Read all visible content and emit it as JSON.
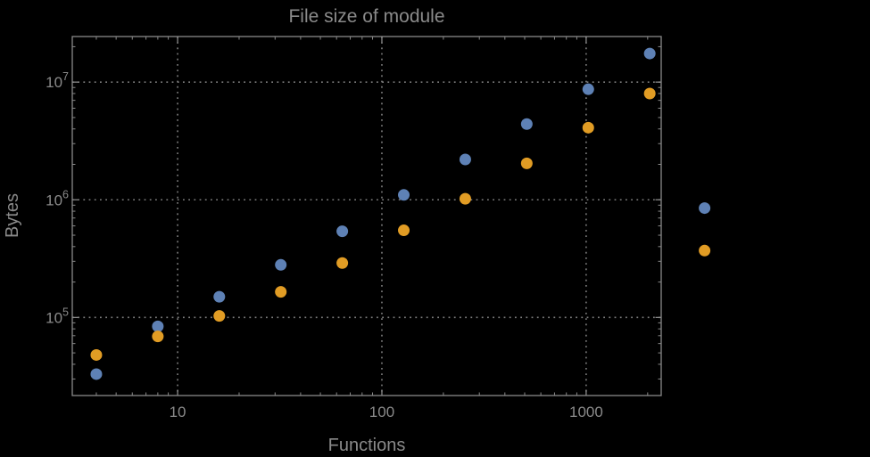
{
  "chart_data": {
    "type": "scatter",
    "title": "File size of module",
    "xlabel": "Functions",
    "ylabel": "Bytes",
    "x_scale": "log",
    "y_scale": "log",
    "xlim": [
      3.05,
      2330
    ],
    "ylim": [
      21700,
      24400000
    ],
    "grid": "dotted",
    "legend_position": "none",
    "x_ticks": [
      {
        "value": 10,
        "label": "10"
      },
      {
        "value": 100,
        "label": "100"
      },
      {
        "value": 1000,
        "label": "1000"
      }
    ],
    "y_ticks": [
      {
        "value": 100000,
        "base": "10",
        "exponent": "5"
      },
      {
        "value": 1000000,
        "base": "10",
        "exponent": "6"
      },
      {
        "value": 10000000,
        "base": "10",
        "exponent": "7"
      }
    ],
    "x_values_functions": [
      4,
      8,
      16,
      32,
      64,
      128,
      256,
      512,
      1024,
      2048,
      3800
    ],
    "series": [
      {
        "name": "series-blue",
        "color": "#5e81b5",
        "bytes": [
          33000,
          84000,
          150000,
          280000,
          540000,
          1100000,
          2200000,
          4400000,
          8700000,
          17500000,
          850000
        ]
      },
      {
        "name": "series-orange",
        "color": "#e19c24",
        "bytes": [
          48000,
          69000,
          103000,
          165000,
          290000,
          550000,
          1020000,
          2040000,
          4100000,
          8000000,
          370000
        ]
      }
    ],
    "colors": {
      "background": "#000000",
      "frame": "#898989",
      "grid": "#7e7e7e",
      "text": "#8a8a8a"
    }
  }
}
